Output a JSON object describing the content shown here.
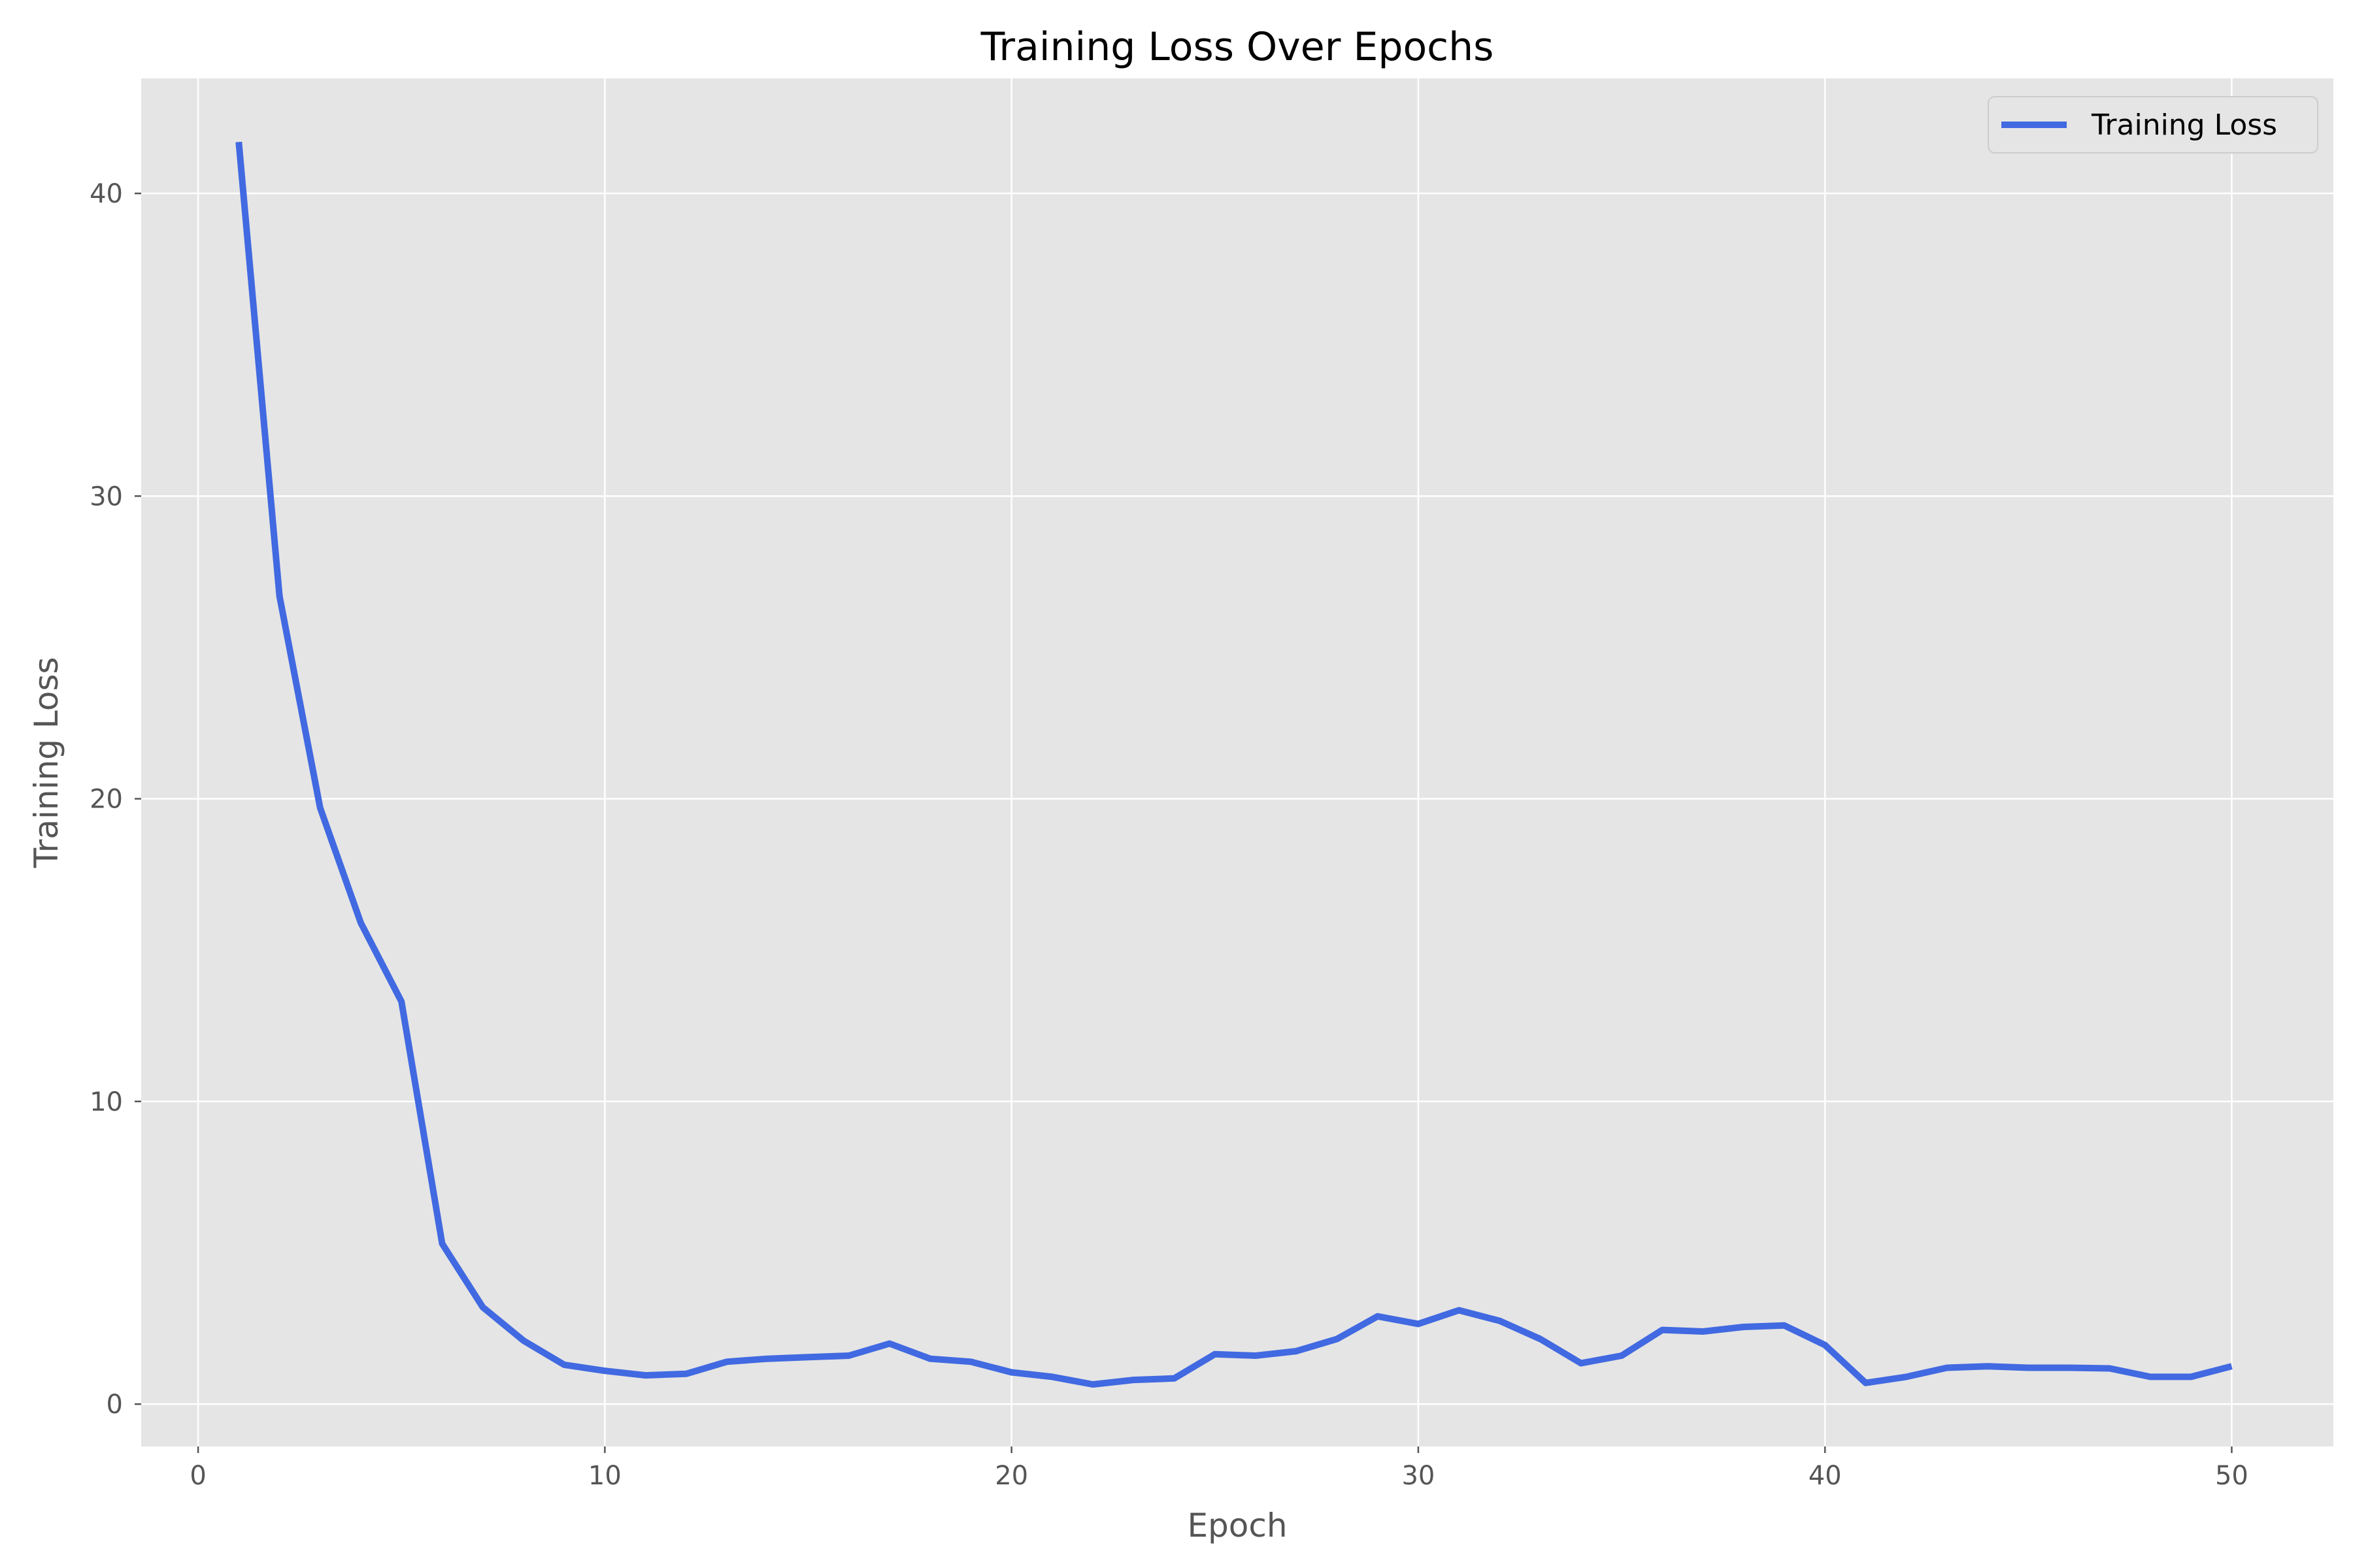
{
  "chart_data": {
    "type": "line",
    "title": "Training Loss Over Epochs",
    "xlabel": "Epoch",
    "ylabel": "Training Loss",
    "xlim": [
      -1.4,
      52.5
    ],
    "ylim": [
      -1.4,
      43.8
    ],
    "xticks": [
      0,
      10,
      20,
      30,
      40,
      50
    ],
    "yticks": [
      0,
      10,
      20,
      30,
      40
    ],
    "grid": true,
    "legend_position": "top-right",
    "series": [
      {
        "name": "Training Loss",
        "color": "#4169E1",
        "x": [
          1,
          2,
          3,
          4,
          5,
          6,
          7,
          8,
          9,
          10,
          11,
          12,
          13,
          14,
          15,
          16,
          17,
          18,
          19,
          20,
          21,
          22,
          23,
          24,
          25,
          26,
          27,
          28,
          29,
          30,
          31,
          32,
          33,
          34,
          35,
          36,
          37,
          38,
          39,
          40,
          41,
          42,
          43,
          44,
          45,
          46,
          47,
          48,
          49,
          50
        ],
        "y": [
          41.7,
          26.7,
          19.7,
          15.9,
          13.3,
          5.3,
          3.2,
          2.1,
          1.3,
          1.1,
          0.95,
          1.0,
          1.4,
          1.5,
          1.55,
          1.6,
          2.0,
          1.5,
          1.4,
          1.05,
          0.9,
          0.65,
          0.8,
          0.85,
          1.65,
          1.6,
          1.75,
          2.15,
          2.9,
          2.65,
          3.1,
          2.75,
          2.15,
          1.35,
          1.6,
          2.45,
          2.4,
          2.55,
          2.6,
          1.95,
          0.7,
          0.9,
          1.2,
          1.25,
          1.2,
          1.2,
          1.18,
          0.9,
          0.9,
          1.25
        ]
      }
    ]
  },
  "colors": {
    "plot_background": "#E5E5E5",
    "grid": "#FFFFFF",
    "line": "#4169E1"
  }
}
